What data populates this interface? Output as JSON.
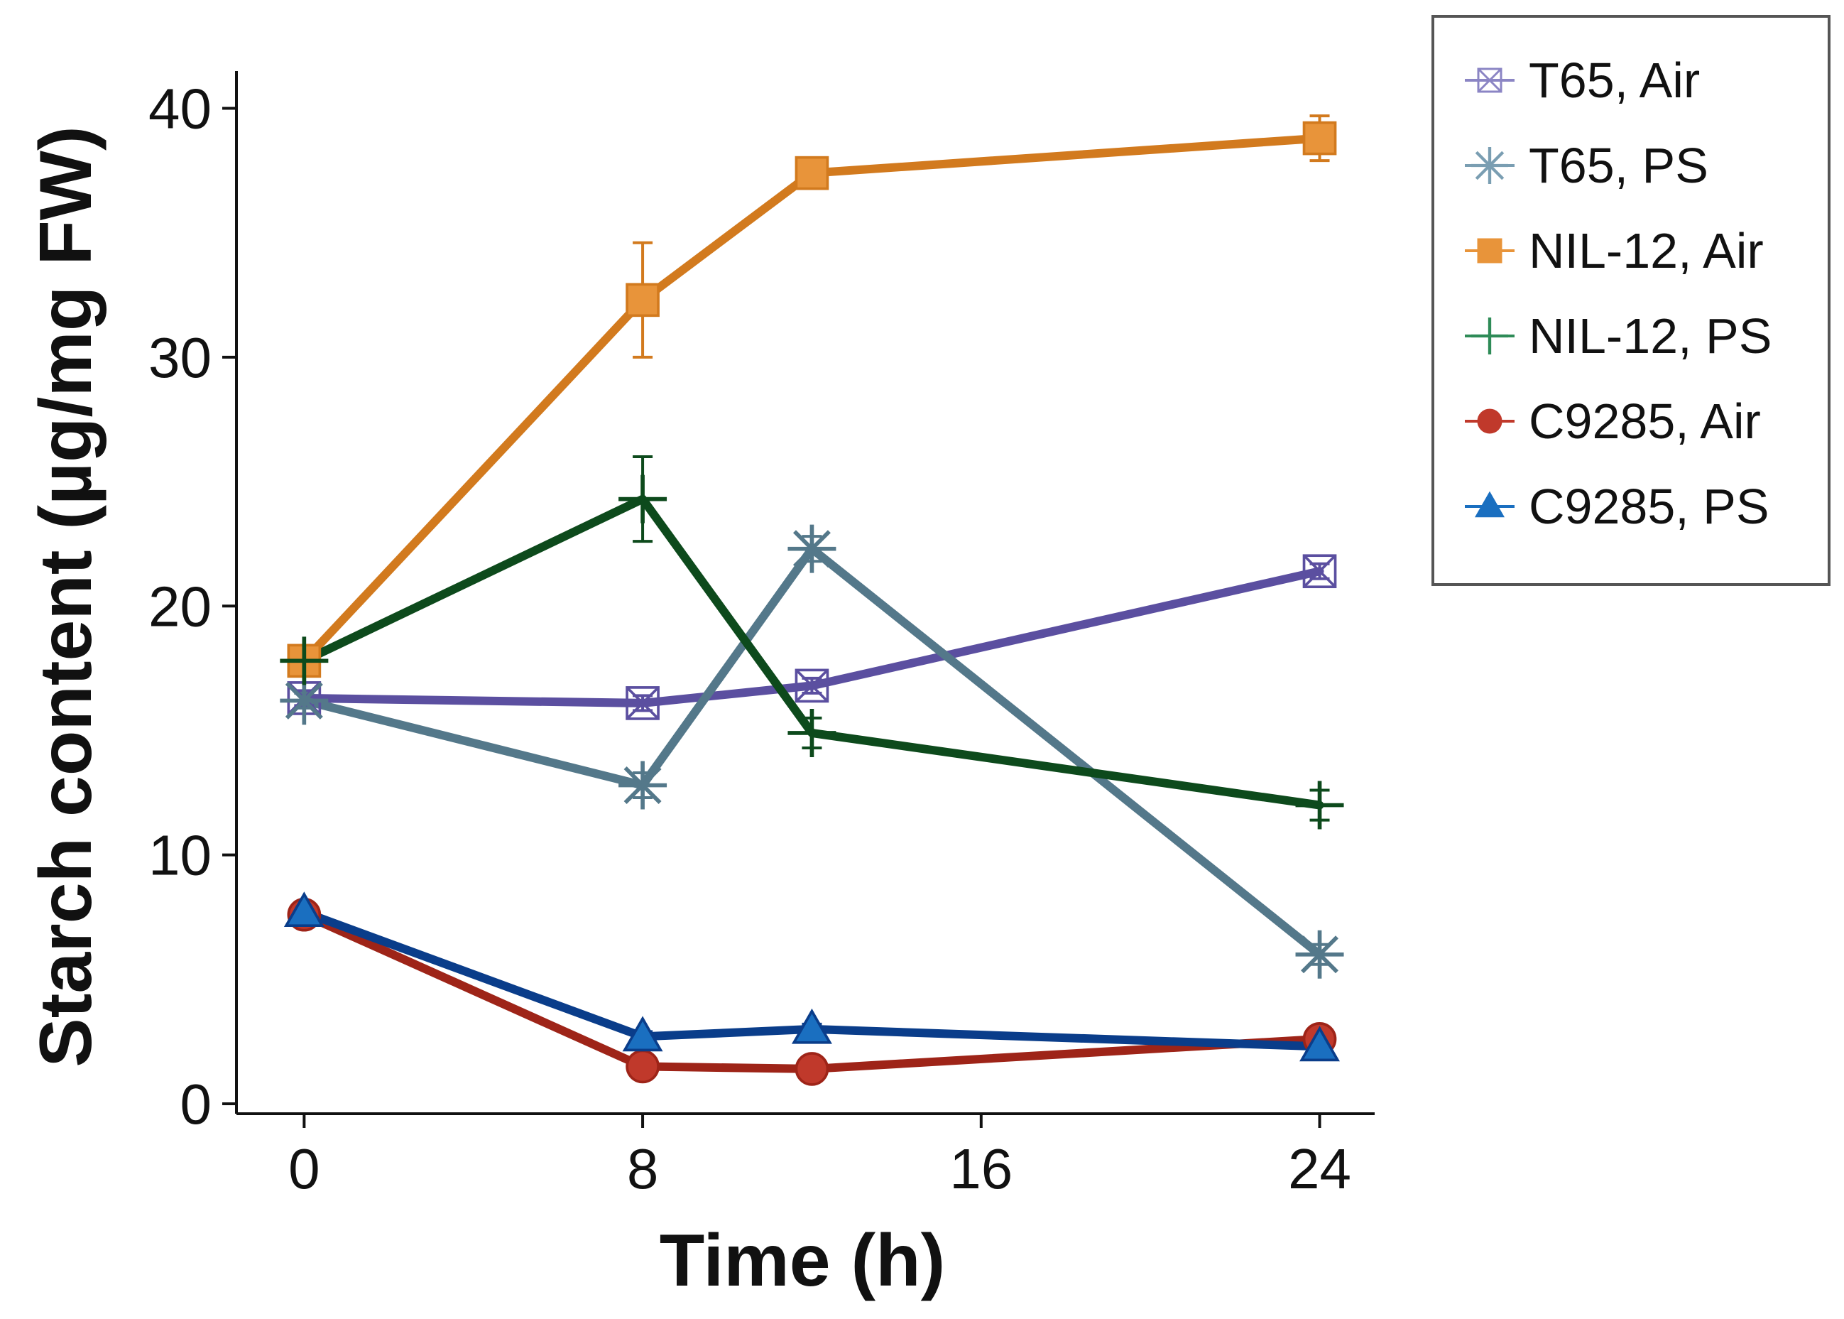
{
  "chart_data": {
    "type": "line",
    "title": "",
    "xlabel": "Time (h)",
    "ylabel": "Starch content (µg/mg FW)",
    "xlim": [
      -1.6,
      25.3
    ],
    "ylim": [
      -0.4,
      41.5
    ],
    "xticks": [
      0,
      8,
      16,
      24
    ],
    "yticks": [
      0,
      10,
      20,
      30,
      40
    ],
    "legend_position": "outside-top-right",
    "series": [
      {
        "name": "T65, Air",
        "marker": "boxed-x",
        "color": "#5b4fa0",
        "marker_color": "#8b85c4",
        "x": [
          0,
          8,
          12,
          24
        ],
        "y": [
          16.3,
          16.1,
          16.8,
          21.4
        ],
        "err": [
          0.3,
          0.3,
          0.3,
          0.3
        ]
      },
      {
        "name": "T65, PS",
        "marker": "asterisk",
        "color": "#54788a",
        "marker_color": "#7a9eb2",
        "x": [
          0,
          8,
          12,
          24
        ],
        "y": [
          16.2,
          12.8,
          22.3,
          6.0
        ],
        "err": [
          0.3,
          0.5,
          0.5,
          0.4
        ]
      },
      {
        "name": "NIL-12, Air",
        "marker": "square",
        "color": "#d27a1e",
        "marker_color": "#e8943a",
        "x": [
          0,
          8,
          12,
          24
        ],
        "y": [
          17.8,
          32.3,
          37.4,
          38.8
        ],
        "err": [
          0.3,
          2.3,
          0.4,
          0.9
        ]
      },
      {
        "name": "NIL-12, PS",
        "marker": "plus",
        "color": "#0d4a1c",
        "marker_color": "#2e8b57",
        "x": [
          0,
          8,
          12,
          24
        ],
        "y": [
          17.8,
          24.3,
          14.9,
          12.0
        ],
        "err": [
          0.4,
          1.7,
          0.6,
          0.6
        ]
      },
      {
        "name": "C9285, Air",
        "marker": "circle",
        "color": "#9e2418",
        "marker_color": "#c0392b",
        "x": [
          0,
          8,
          12,
          24
        ],
        "y": [
          7.6,
          1.5,
          1.4,
          2.6
        ],
        "err": [
          0.2,
          0.2,
          0.2,
          0.2
        ]
      },
      {
        "name": "C9285, PS",
        "marker": "triangle",
        "color": "#0a3d8a",
        "marker_color": "#1a6fc0",
        "x": [
          0,
          8,
          12,
          24
        ],
        "y": [
          7.7,
          2.7,
          3.0,
          2.3
        ],
        "err": [
          0.2,
          0.2,
          0.2,
          0.2
        ]
      }
    ]
  }
}
